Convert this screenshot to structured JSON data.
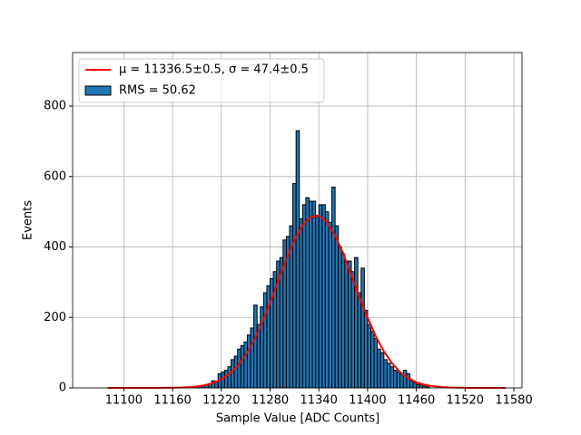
{
  "chart_data": {
    "type": "histogram",
    "xlabel": "Sample Value [ADC Counts]",
    "ylabel": "Events",
    "name": "RMS = 50.62",
    "color": "#1f77b4",
    "edgecolor": "#000000",
    "bins": [
      11184,
      11188,
      11192,
      11196,
      11200,
      11204,
      11208,
      11212,
      11216,
      11220,
      11224,
      11228,
      11232,
      11236,
      11240,
      11244,
      11248,
      11252,
      11256,
      11260,
      11264,
      11268,
      11272,
      11276,
      11280,
      11284,
      11288,
      11292,
      11296,
      11300,
      11304,
      11308,
      11312,
      11316,
      11320,
      11324,
      11328,
      11332,
      11336,
      11340,
      11344,
      11348,
      11352,
      11356,
      11360,
      11364,
      11368,
      11372,
      11376,
      11380,
      11384,
      11388,
      11392,
      11396,
      11400,
      11404,
      11408,
      11412,
      11416,
      11420,
      11424,
      11428,
      11432,
      11436,
      11440,
      11444,
      11448,
      11452,
      11456,
      11460,
      11464,
      11468,
      11472,
      11476
    ],
    "values": [
      3,
      4,
      5,
      7,
      9,
      12,
      20,
      18,
      40,
      45,
      50,
      60,
      80,
      90,
      110,
      120,
      130,
      150,
      170,
      235,
      180,
      230,
      270,
      290,
      310,
      330,
      360,
      370,
      420,
      430,
      460,
      580,
      730,
      480,
      520,
      540,
      530,
      530,
      490,
      520,
      520,
      500,
      470,
      570,
      460,
      400,
      380,
      360,
      360,
      330,
      370,
      270,
      340,
      220,
      180,
      160,
      140,
      110,
      100,
      80,
      70,
      60,
      50,
      45,
      40,
      50,
      40,
      20,
      15,
      10,
      8,
      5,
      3
    ],
    "line": {
      "name": "μ = 11336.5±0.5, σ = 47.4±0.5",
      "color": "#ff0000",
      "x": [
        11080,
        11090,
        11100,
        11110,
        11120,
        11130,
        11140,
        11150,
        11160,
        11170,
        11180,
        11190,
        11200,
        11210,
        11220,
        11230,
        11240,
        11250,
        11260,
        11270,
        11280,
        11290,
        11300,
        11310,
        11320,
        11330,
        11340,
        11350,
        11360,
        11370,
        11380,
        11390,
        11400,
        11410,
        11420,
        11430,
        11440,
        11450,
        11460,
        11470,
        11480,
        11490,
        11500,
        11510,
        11520,
        11530,
        11540,
        11550,
        11560,
        11570
      ],
      "values": [
        0,
        0,
        0,
        0,
        0,
        0,
        0.1,
        0.2,
        0.5,
        1.0,
        2.1,
        4.1,
        7.8,
        13.9,
        23.8,
        39.2,
        61.7,
        92.6,
        133,
        183,
        241,
        303,
        364,
        419,
        461,
        485,
        489,
        471,
        433,
        382,
        321,
        259,
        200,
        147,
        104,
        70,
        45,
        28,
        16,
        9,
        5,
        2.6,
        1.3,
        0.6,
        0.3,
        0.1,
        0,
        0,
        0,
        0
      ]
    },
    "xlim": [
      11037,
      11590
    ],
    "ylim": [
      0,
      952
    ],
    "xticks": [
      11100,
      11160,
      11220,
      11280,
      11340,
      11400,
      11460,
      11520,
      11580
    ],
    "yticks": [
      0,
      200,
      400,
      600,
      800
    ],
    "grid": true,
    "legend": "upper left"
  }
}
